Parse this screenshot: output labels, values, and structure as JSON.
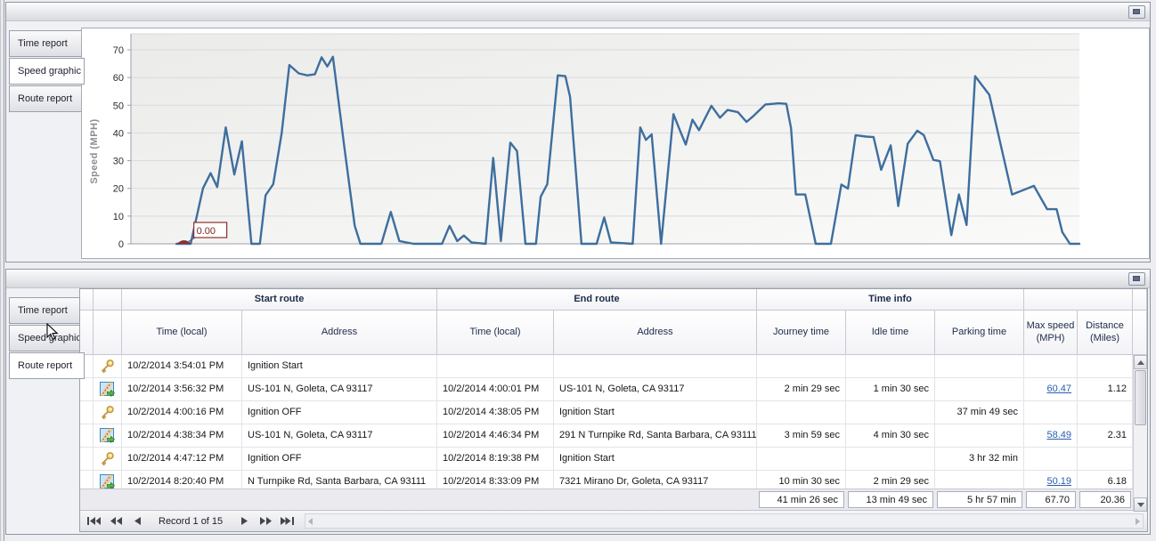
{
  "colors": {
    "chart_line": "#3e6e9e",
    "chart_marker": "#8e2f2b",
    "link": "#2a5db0",
    "header_text": "#1c2b4a"
  },
  "icons": {
    "key": "ignition-key-icon",
    "route": "route-map-icon",
    "collapse": "collapse-panel-icon"
  },
  "top_panel": {
    "tabs": [
      "Time report",
      "Speed graphic",
      "Route report"
    ],
    "selected_tab": "Speed graphic"
  },
  "chart_data": {
    "type": "line",
    "title": "",
    "xlabel": "",
    "ylabel": "Speed (MPH)",
    "ylim": [
      0,
      72.5
    ],
    "yticks": [
      0,
      10,
      20,
      30,
      40,
      50,
      60,
      70
    ],
    "grid": "horizontal",
    "legend": "none",
    "x_unit": "percent-of-route-timeline",
    "series": [
      {
        "name": "Speed (MPH)",
        "color": "#3e6e9e",
        "points": [
          [
            4.8,
            0
          ],
          [
            6.3,
            0
          ],
          [
            7.6,
            20
          ],
          [
            8.4,
            25.5
          ],
          [
            9.1,
            20.5
          ],
          [
            10.0,
            42
          ],
          [
            10.9,
            25
          ],
          [
            11.7,
            37
          ],
          [
            12.7,
            0
          ],
          [
            13.6,
            0
          ],
          [
            14.2,
            17.5
          ],
          [
            15.0,
            21.5
          ],
          [
            15.9,
            40
          ],
          [
            16.7,
            64.5
          ],
          [
            17.7,
            61.5
          ],
          [
            18.6,
            60.8
          ],
          [
            19.4,
            61.2
          ],
          [
            20.1,
            67.3
          ],
          [
            20.7,
            64
          ],
          [
            21.3,
            67.5
          ],
          [
            22.5,
            35
          ],
          [
            23.6,
            6.5
          ],
          [
            24.2,
            0
          ],
          [
            26.4,
            0
          ],
          [
            27.4,
            11.5
          ],
          [
            28.3,
            1
          ],
          [
            29.8,
            0
          ],
          [
            32.8,
            0
          ],
          [
            33.6,
            6.5
          ],
          [
            34.4,
            1
          ],
          [
            35.1,
            3
          ],
          [
            35.9,
            0.5
          ],
          [
            37.4,
            0
          ],
          [
            38.2,
            31
          ],
          [
            39.0,
            1
          ],
          [
            40.0,
            36.5
          ],
          [
            40.7,
            33.5
          ],
          [
            41.6,
            0
          ],
          [
            42.7,
            0
          ],
          [
            43.2,
            17
          ],
          [
            43.9,
            21.5
          ],
          [
            45.0,
            60.8
          ],
          [
            45.8,
            60.5
          ],
          [
            46.3,
            53
          ],
          [
            47.5,
            0
          ],
          [
            49.1,
            0
          ],
          [
            49.9,
            9.5
          ],
          [
            50.6,
            0.5
          ],
          [
            52.9,
            0
          ],
          [
            53.7,
            42
          ],
          [
            54.3,
            37.5
          ],
          [
            54.9,
            39.5
          ],
          [
            55.9,
            0
          ],
          [
            57.2,
            46.8
          ],
          [
            57.9,
            40.8
          ],
          [
            58.5,
            35.8
          ],
          [
            59.2,
            44.8
          ],
          [
            59.9,
            41
          ],
          [
            61.2,
            49.8
          ],
          [
            62.1,
            45.5
          ],
          [
            62.9,
            48.3
          ],
          [
            64.0,
            47.5
          ],
          [
            64.9,
            44
          ],
          [
            65.6,
            46
          ],
          [
            66.9,
            50.3
          ],
          [
            68.3,
            50.7
          ],
          [
            69.1,
            50.5
          ],
          [
            69.6,
            41.8
          ],
          [
            70.1,
            17.8
          ],
          [
            71.1,
            17.8
          ],
          [
            72.2,
            0
          ],
          [
            73.8,
            0
          ],
          [
            74.9,
            21.4
          ],
          [
            75.6,
            19.9
          ],
          [
            76.4,
            39.2
          ],
          [
            77.5,
            38.7
          ],
          [
            78.3,
            38.5
          ],
          [
            79.1,
            26.7
          ],
          [
            80.1,
            35.5
          ],
          [
            80.9,
            13.6
          ],
          [
            81.9,
            36.1
          ],
          [
            82.9,
            40.8
          ],
          [
            83.6,
            39.2
          ],
          [
            84.6,
            30.3
          ],
          [
            85.3,
            29.8
          ],
          [
            86.5,
            3.1
          ],
          [
            87.3,
            17.8
          ],
          [
            88.1,
            6.8
          ],
          [
            89.0,
            60.5
          ],
          [
            90.5,
            53.8
          ],
          [
            92.9,
            17.8
          ],
          [
            95.2,
            20.9
          ],
          [
            96.6,
            12.5
          ],
          [
            97.6,
            12.5
          ],
          [
            98.2,
            4.2
          ],
          [
            99.0,
            0
          ],
          [
            100,
            0
          ]
        ]
      }
    ],
    "annotation": {
      "label": "0.00",
      "x": 5.6,
      "y": 0,
      "color": "#8e2f2b"
    }
  },
  "bottom_panel": {
    "tabs": [
      "Time report",
      "Speed graphic",
      "Route report"
    ],
    "selected_tab": "Route report",
    "table": {
      "column_groups": [
        {
          "label": "Start route"
        },
        {
          "label": "End route"
        },
        {
          "label": "Time info"
        }
      ],
      "columns": [
        "Time (local)",
        "Address",
        "Time (local)",
        "Address",
        "Journey time",
        "Idle time",
        "Parking time",
        "Max speed (MPH)",
        "Distance (Miles)"
      ],
      "rows": [
        {
          "icon": "key",
          "start_time": "10/2/2014 3:54:01 PM",
          "start_address": "Ignition Start",
          "end_time": "",
          "end_address": "",
          "journey": "",
          "idle": "",
          "parking": "",
          "max_speed": "",
          "distance": ""
        },
        {
          "icon": "route",
          "start_time": "10/2/2014 3:56:32 PM",
          "start_address": "US-101 N, Goleta, CA 93117",
          "end_time": "10/2/2014 4:00:01 PM",
          "end_address": "US-101 N, Goleta, CA 93117",
          "journey": "2 min 29 sec",
          "idle": "1 min 30 sec",
          "parking": "",
          "max_speed": "60.47",
          "distance": "1.12"
        },
        {
          "icon": "key",
          "start_time": "10/2/2014 4:00:16 PM",
          "start_address": "Ignition OFF",
          "end_time": "10/2/2014 4:38:05 PM",
          "end_address": "Ignition Start",
          "journey": "",
          "idle": "",
          "parking": "37 min 49 sec",
          "max_speed": "",
          "distance": ""
        },
        {
          "icon": "route",
          "start_time": "10/2/2014 4:38:34 PM",
          "start_address": "US-101 N, Goleta, CA 93117",
          "end_time": "10/2/2014 4:46:34 PM",
          "end_address": "291 N Turnpike Rd, Santa Barbara, CA 93111",
          "journey": "3 min 59 sec",
          "idle": "4 min 30 sec",
          "parking": "",
          "max_speed": "58.49",
          "distance": "2.31"
        },
        {
          "icon": "key",
          "start_time": "10/2/2014 4:47:12 PM",
          "start_address": "Ignition OFF",
          "end_time": "10/2/2014 8:19:38 PM",
          "end_address": "Ignition Start",
          "journey": "",
          "idle": "",
          "parking": "3 hr 32 min",
          "max_speed": "",
          "distance": ""
        },
        {
          "icon": "route",
          "start_time": "10/2/2014 8:20:40 PM",
          "start_address": "N Turnpike Rd, Santa Barbara, CA 93111",
          "end_time": "10/2/2014 8:33:09 PM",
          "end_address": "7321 Mirano Dr, Goleta, CA 93117",
          "journey": "10 min 30 sec",
          "idle": "2 min 29 sec",
          "parking": "",
          "max_speed": "50.19",
          "distance": "6.18"
        }
      ],
      "summary": {
        "journey": "41 min 26 sec",
        "idle": "13 min 49 sec",
        "parking": "5 hr 57 min",
        "max_speed": "67.70",
        "distance": "20.36"
      }
    },
    "navigator": {
      "label": "Record 1 of 15"
    }
  }
}
